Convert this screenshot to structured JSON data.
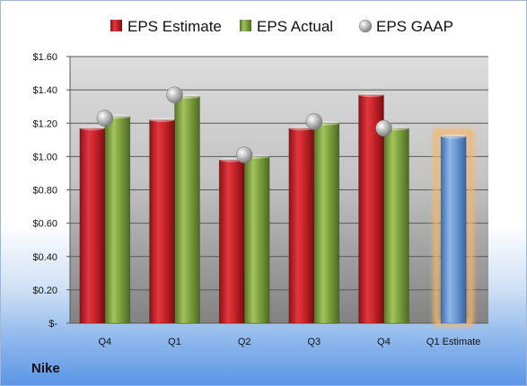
{
  "company": "Nike",
  "chart_data": {
    "type": "bar",
    "categories": [
      "Q4",
      "Q1",
      "Q2",
      "Q3",
      "Q4",
      "Q1 Estimate"
    ],
    "series": [
      {
        "name": "EPS Estimate",
        "color": "#c0262c",
        "values": [
          1.17,
          1.22,
          0.98,
          1.17,
          1.37,
          null
        ]
      },
      {
        "name": "EPS Actual",
        "color": "#7fa13f",
        "values": [
          1.24,
          1.36,
          1.0,
          1.2,
          1.17,
          null
        ]
      },
      {
        "name": "EPS GAAP",
        "color": "#a8a8a8",
        "marker": "sphere",
        "values": [
          1.23,
          1.37,
          1.01,
          1.21,
          1.17,
          null
        ]
      }
    ],
    "estimate_bar": {
      "category": "Q1 Estimate",
      "value": 1.12,
      "color": "#6b9ad6",
      "glow": "#f5b56a"
    },
    "ylim": [
      0,
      1.6
    ],
    "yticks": [
      0,
      0.2,
      0.4,
      0.6,
      0.8,
      1.0,
      1.2,
      1.4,
      1.6
    ],
    "ytick_labels": [
      "$-",
      "$0.20",
      "$0.40",
      "$0.60",
      "$0.80",
      "$1.00",
      "$1.20",
      "$1.40",
      "$1.60"
    ],
    "grid": true,
    "legend_position": "top"
  }
}
